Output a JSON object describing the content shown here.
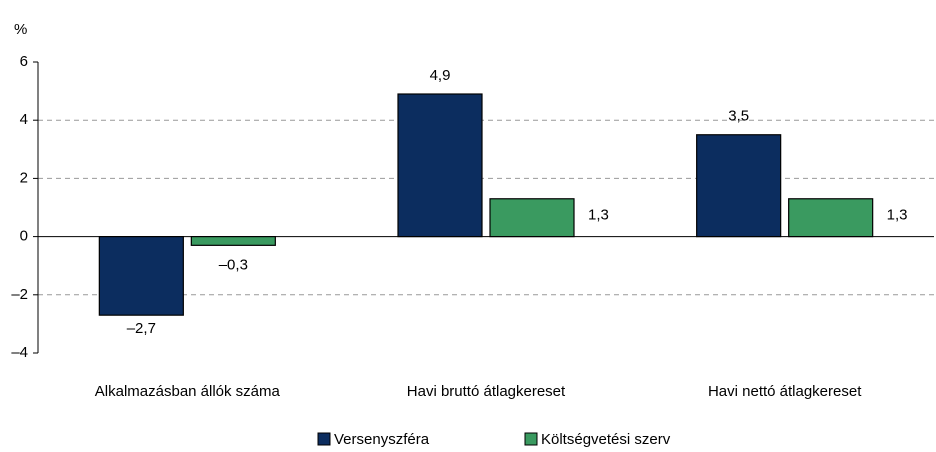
{
  "chart_data": {
    "type": "bar",
    "y_label": "%",
    "categories": [
      "Alkalmazásban állók száma",
      "Havi bruttó átlagkereset",
      "Havi nettó átlagkereset"
    ],
    "series": [
      {
        "name": "Versenyszféra",
        "color": "#0c2d5f",
        "values": [
          -2.7,
          4.9,
          3.5
        ],
        "value_labels": [
          "–2,7",
          "4,9",
          "3,5"
        ]
      },
      {
        "name": "Költségvetési szerv",
        "color": "#3a9a60",
        "values": [
          -0.3,
          1.3,
          1.3
        ],
        "value_labels": [
          "–0,3",
          "1,3",
          "1,3"
        ]
      }
    ],
    "ylim": [
      -4,
      6
    ],
    "yticks": [
      {
        "value": -4,
        "label": "–4"
      },
      {
        "value": -2,
        "label": "–2"
      },
      0,
      2,
      4,
      6
    ],
    "grid": true,
    "legend": "bottom"
  }
}
